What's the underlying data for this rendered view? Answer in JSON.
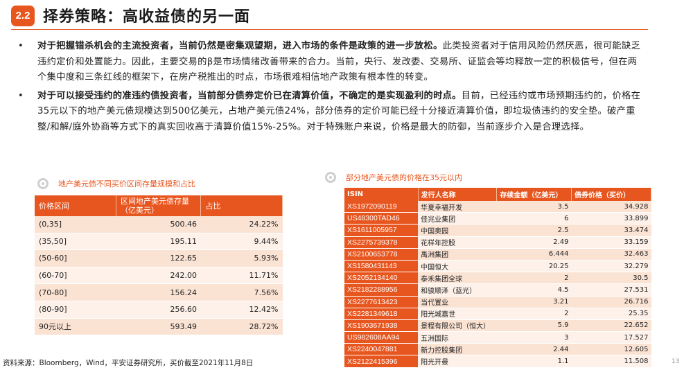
{
  "header": {
    "badge": "2.2",
    "title": "择券策略：高收益债的另一面"
  },
  "bullets": [
    {
      "lead": "对于把握错杀机会的主流投资者，当前仍然是密集观望期，进入市场的条件是政策的进一步放松。",
      "body": "此类投资者对于信用风险仍然厌恶，很可能缺乏违约定价和处置能力。因此，主要交易的β是市场情绪改善带来的合力。当前，央行、发改委、交易所、证监会等均释放一定的积极信号，但在两个集中度和三条红线的框架下，在房产税推出的时点，市场很难相信地产政策有根本性的转变。"
    },
    {
      "lead": "对于可以接受违约的准违约债投资者，当前部分债券定价已在清算价值，不确定的是实现盈利的时点。",
      "body": "目前，已经违约或市场预期违约的，价格在35元以下的地产美元债规模达到500亿美元，占地产美元债24%，部分债券的定价可能已经十分接近清算价值，即垃圾债违约的安全垫。破产重整/和解/庭外协商等方式下的真实回收高于清算价值15%-25%。对于特殊账户来说，价格是最大的防御，当前逐步介入是合理选择。"
    }
  ],
  "table1": {
    "caption": "地产美元债不同买价区间存量规模和占比",
    "headers": [
      "价格区间",
      "区间地产美元债存量（亿美元）",
      "占比"
    ],
    "rows": [
      [
        "(0,35]",
        "500.46",
        "24.22%"
      ],
      [
        "(35,50]",
        "195.11",
        "9.44%"
      ],
      [
        "(50-60]",
        "122.65",
        "5.93%"
      ],
      [
        "(60-70]",
        "242.00",
        "11.71%"
      ],
      [
        "(70-80]",
        "156.24",
        "7.56%"
      ],
      [
        "(80-90]",
        "256.60",
        "12.42%"
      ],
      [
        "90元以上",
        "593.49",
        "28.72%"
      ]
    ]
  },
  "table2": {
    "caption": "部分地产美元债的价格在35元以内",
    "headers": [
      "ISIN",
      "发行人名称",
      "存续金额（亿美元）",
      "债券价格（买价）"
    ],
    "rows": [
      [
        "XS1972090119",
        "华夏幸福开发",
        "3.5",
        "34.928"
      ],
      [
        "US48300TAD46",
        "佳兆业集团",
        "6",
        "33.899"
      ],
      [
        "XS1611005957",
        "中国奥园",
        "2.5",
        "33.474"
      ],
      [
        "XS2275739378",
        "花样年控股",
        "2.49",
        "33.159"
      ],
      [
        "XS2100653778",
        "禹洲集团",
        "6.444",
        "32.463"
      ],
      [
        "XS1580431143",
        "中国恒大",
        "20.25",
        "32.279"
      ],
      [
        "XS2052134140",
        "泰禾集团全球",
        "2",
        "30.5"
      ],
      [
        "XS2182288956",
        "和骏顺泽（蓝光）",
        "4.5",
        "27.531"
      ],
      [
        "XS2277613423",
        "当代置业",
        "3.21",
        "26.716"
      ],
      [
        "XS2281349618",
        "阳光城嘉世",
        "2",
        "25.35"
      ],
      [
        "XS1903671938",
        "景程有限公司（恒大）",
        "5.9",
        "22.652"
      ],
      [
        "US982608AA94",
        "五洲国际",
        "3",
        "17.527"
      ],
      [
        "XS2240047881",
        "新力控股集团",
        "2.44",
        "12.605"
      ],
      [
        "XS2122415396",
        "阳光开曼",
        "1.1",
        "11.508"
      ]
    ]
  },
  "footer": {
    "source": "资料来源：Bloomberg，Wind，平安证券研究所，买价截至2021年11月8日",
    "page": "13"
  },
  "colors": {
    "accent": "#e8561f",
    "row_light": "#fdf1e9",
    "row_mid": "#fbe3d4"
  }
}
